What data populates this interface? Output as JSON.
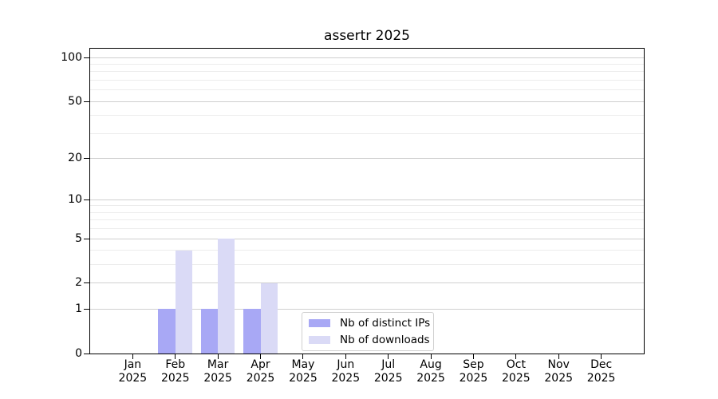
{
  "title": "assertr 2025",
  "chart_data": {
    "type": "bar",
    "title": "assertr 2025",
    "categories": [
      "Jan",
      "Feb",
      "Mar",
      "Apr",
      "May",
      "Jun",
      "Jul",
      "Aug",
      "Sep",
      "Oct",
      "Nov",
      "Dec"
    ],
    "x_year_label": "2025",
    "series": [
      {
        "name": "Nb of distinct IPs",
        "color": "#a8a8f5",
        "values": [
          0,
          1,
          1,
          1,
          0,
          0,
          0,
          0,
          0,
          0,
          0,
          0
        ]
      },
      {
        "name": "Nb of downloads",
        "color": "#dadaf6",
        "values": [
          0,
          4,
          5,
          2,
          0,
          0,
          0,
          0,
          0,
          0,
          0,
          0
        ]
      }
    ],
    "yscale": "log1p",
    "ylim": [
      0,
      115
    ],
    "yticks_major": [
      0,
      1,
      2,
      5,
      10,
      20,
      50,
      100
    ],
    "yticks_minor": [
      3,
      4,
      6,
      7,
      8,
      9,
      30,
      40,
      60,
      70,
      80,
      90
    ],
    "grid": true,
    "legend": {
      "labels": [
        "Nb of distinct IPs",
        "Nb of downloads"
      ],
      "position": "lower center"
    }
  },
  "colors": {
    "distinct_ips": "#a8a8f5",
    "downloads": "#dadaf6",
    "grid_major": "#cfcfcf",
    "grid_minor": "#ececec",
    "axis": "#000000",
    "background": "#ffffff",
    "legend_border": "#d0d0d0"
  }
}
